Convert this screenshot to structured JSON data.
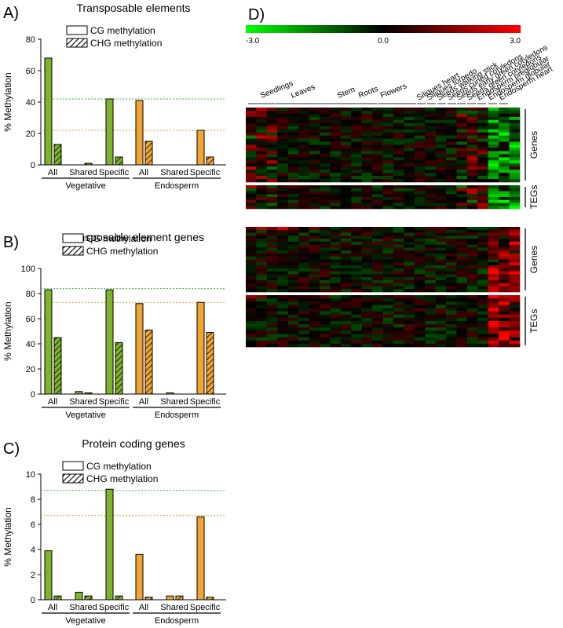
{
  "panels": [
    {
      "id": "A",
      "letter": "A)",
      "title": "Transposable elements",
      "ylabel": "% Methylation",
      "ylim": [
        0,
        80
      ],
      "yticks": [
        "0",
        "20",
        "40",
        "60",
        "80"
      ],
      "legend": [
        "CG methylation",
        "CHG methylation"
      ],
      "ref_green": 42,
      "ref_orange": 22,
      "groups": [
        {
          "label": "Vegetative",
          "categories": [
            "All",
            "Shared",
            "Specific"
          ],
          "cg": [
            68,
            0,
            42
          ],
          "chg": [
            13,
            1,
            5
          ]
        },
        {
          "label": "Endosperm",
          "categories": [
            "All",
            "Shared",
            "Specific"
          ],
          "cg": [
            41,
            0,
            22
          ],
          "chg": [
            15,
            0,
            5
          ]
        }
      ]
    },
    {
      "id": "B",
      "letter": "B)",
      "title": "Transposable element genes",
      "ylabel": "% Methylation",
      "ylim": [
        0,
        100
      ],
      "yticks": [
        "0",
        "20",
        "40",
        "60",
        "80",
        "100"
      ],
      "legend": [
        "CG methylation",
        "CHG methylation"
      ],
      "ref_green": 84,
      "ref_orange": 73,
      "groups": [
        {
          "label": "Vegetative",
          "categories": [
            "All",
            "Shared",
            "Specific"
          ],
          "cg": [
            83,
            2,
            83
          ],
          "chg": [
            45,
            1,
            41
          ]
        },
        {
          "label": "Endosperm",
          "categories": [
            "All",
            "Shared",
            "Specific"
          ],
          "cg": [
            72,
            1,
            73
          ],
          "chg": [
            51,
            0,
            49
          ]
        }
      ]
    },
    {
      "id": "C",
      "letter": "C)",
      "title": "Protein coding genes",
      "ylabel": "% Methylation",
      "ylim": [
        0,
        10
      ],
      "yticks": [
        "0",
        "2",
        "4",
        "6",
        "8",
        "10"
      ],
      "legend": [
        "CG methylation",
        "CHG methylation"
      ],
      "ref_green": 8.7,
      "ref_orange": 6.7,
      "groups": [
        {
          "label": "Vegetative",
          "categories": [
            "All",
            "Shared",
            "Specific"
          ],
          "cg": [
            3.9,
            0.6,
            8.8
          ],
          "chg": [
            0.3,
            0.3,
            0.3
          ]
        },
        {
          "label": "Endosperm",
          "categories": [
            "All",
            "Shared",
            "Specific"
          ],
          "cg": [
            3.6,
            0.3,
            6.6
          ],
          "chg": [
            0.2,
            0.3,
            0.2
          ]
        }
      ]
    }
  ],
  "heatmap": {
    "letter": "D)",
    "scale_min": "-3.0",
    "scale_mid": "0.0",
    "scale_max": "3.0",
    "tissue_groups": [
      "Seedlings",
      "Leaves",
      "Stem",
      "Roots",
      "Flowers"
    ],
    "seed_columns": [
      "Siliques heart",
      "Siliques torpedo",
      "Seeds walking stick",
      "Seeds curled cotyledons",
      "Seeds early green cotyledons",
      "Seeds green cotyledons",
      "Endosperm preglobular",
      "Endosperm globular",
      "Endosperm heart"
    ],
    "blocks": [
      {
        "label": "Genes"
      },
      {
        "label": "TEGs"
      },
      {
        "label": "Genes"
      },
      {
        "label": "TEGs"
      }
    ]
  },
  "colors": {
    "green": "#7db42b",
    "orange": "#f2a531",
    "ref_green": "#3fb03f",
    "ref_orange": "#e69b22"
  },
  "chart_data": [
    {
      "type": "bar",
      "title": "Transposable elements",
      "ylabel": "% Methylation",
      "ylim": [
        0,
        80
      ],
      "categories": [
        "Vegetative All",
        "Vegetative Shared",
        "Vegetative Specific",
        "Endosperm All",
        "Endosperm Shared",
        "Endosperm Specific"
      ],
      "series": [
        {
          "name": "CG methylation",
          "values": [
            68,
            0,
            42,
            41,
            0,
            22
          ]
        },
        {
          "name": "CHG methylation",
          "values": [
            13,
            1,
            5,
            15,
            0,
            5
          ]
        }
      ]
    },
    {
      "type": "bar",
      "title": "Transposable element genes",
      "ylabel": "% Methylation",
      "ylim": [
        0,
        100
      ],
      "categories": [
        "Vegetative All",
        "Vegetative Shared",
        "Vegetative Specific",
        "Endosperm All",
        "Endosperm Shared",
        "Endosperm Specific"
      ],
      "series": [
        {
          "name": "CG methylation",
          "values": [
            83,
            2,
            83,
            72,
            1,
            73
          ]
        },
        {
          "name": "CHG methylation",
          "values": [
            45,
            1,
            41,
            51,
            0,
            49
          ]
        }
      ]
    },
    {
      "type": "bar",
      "title": "Protein coding genes",
      "ylabel": "% Methylation",
      "ylim": [
        0,
        10
      ],
      "categories": [
        "Vegetative All",
        "Vegetative Shared",
        "Vegetative Specific",
        "Endosperm All",
        "Endosperm Shared",
        "Endosperm Specific"
      ],
      "series": [
        {
          "name": "CG methylation",
          "values": [
            3.9,
            0.6,
            8.8,
            3.6,
            0.3,
            6.6
          ]
        },
        {
          "name": "CHG methylation",
          "values": [
            0.3,
            0.3,
            0.3,
            0.2,
            0.3,
            0.2
          ]
        }
      ]
    },
    {
      "type": "heatmap",
      "color_scale": [
        -3.0,
        0.0,
        3.0
      ]
    }
  ]
}
